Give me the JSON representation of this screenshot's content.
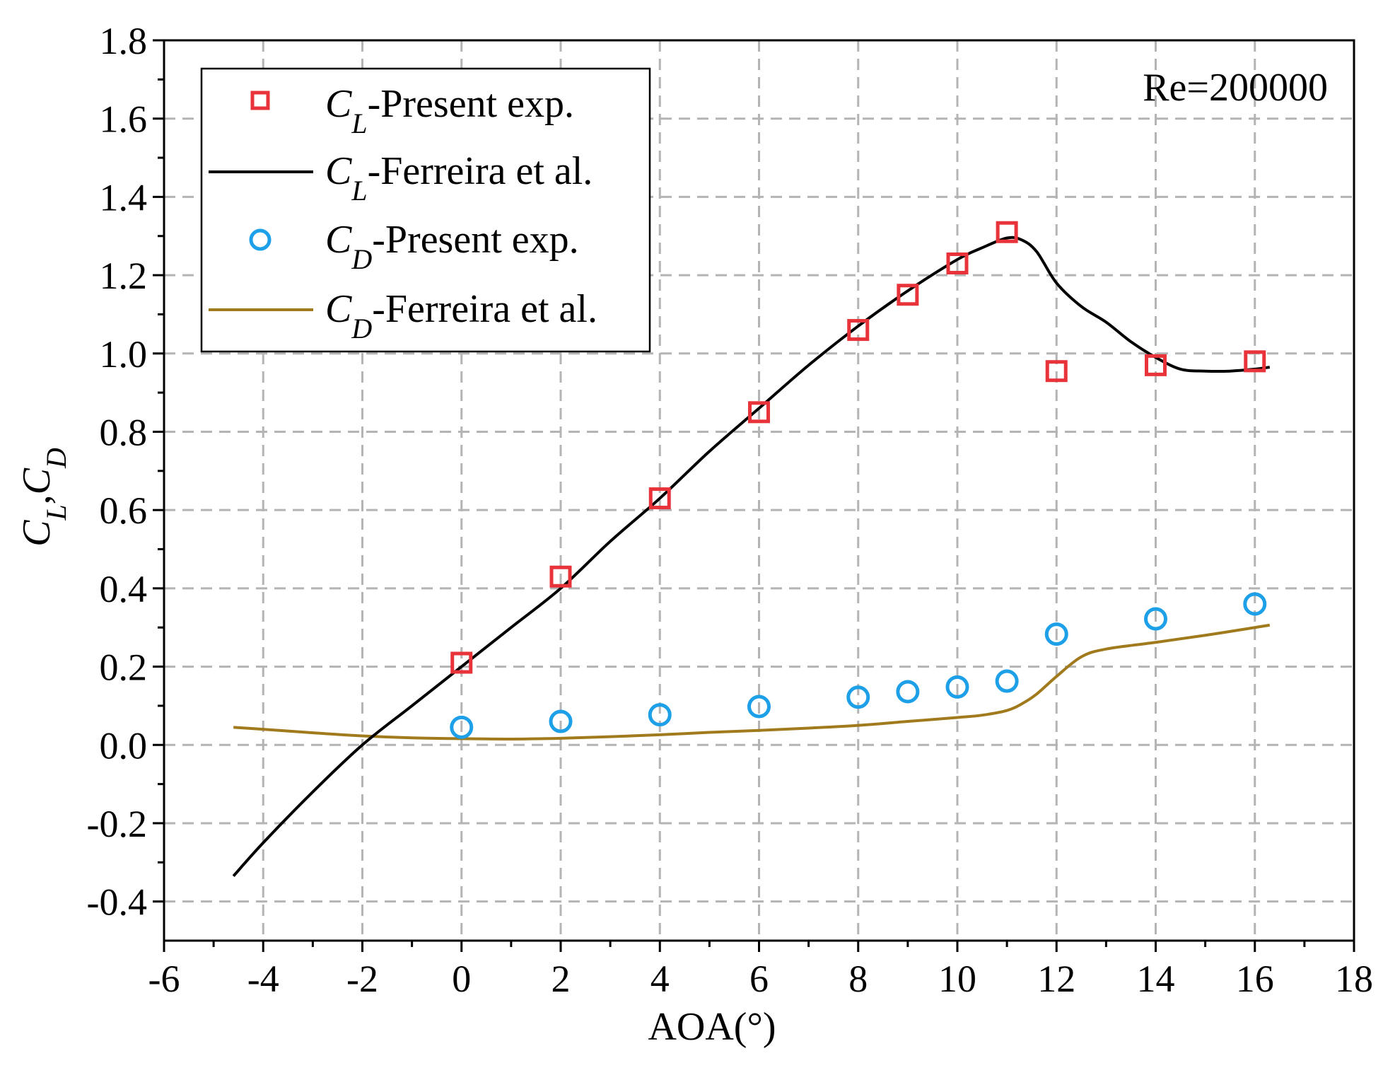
{
  "chart_data": {
    "type": "line",
    "annotation": "Re=200000",
    "xlabel": "AOA(°)",
    "ylabel": {
      "base1": "C",
      "sub1": "L",
      "sep": ",",
      "base2": "C",
      "sub2": "D"
    },
    "xlim": [
      -6,
      18
    ],
    "ylim": [
      -0.5,
      1.8
    ],
    "xticks": [
      -6,
      -4,
      -2,
      0,
      2,
      4,
      6,
      8,
      10,
      12,
      14,
      16,
      18
    ],
    "yticks": [
      -0.4,
      -0.2,
      0.0,
      0.2,
      0.4,
      0.6,
      0.8,
      1.0,
      1.2,
      1.4,
      1.6,
      1.8
    ],
    "grid": true,
    "legend_position": "top-left",
    "colors": {
      "cl_exp": "#e8333a",
      "cl_ref": "#000000",
      "cd_exp": "#1ea0e8",
      "cd_ref": "#a07a1c",
      "grid": "#b4b4b4"
    },
    "series": [
      {
        "name": "CL-Present exp.",
        "legend": {
          "base": "C",
          "sub": "L",
          "rest": "-Present exp."
        },
        "kind": "markers",
        "marker": "square",
        "x": [
          0,
          2,
          4,
          6,
          8,
          9,
          10,
          11,
          12,
          14,
          16
        ],
        "y": [
          0.21,
          0.43,
          0.63,
          0.85,
          1.06,
          1.15,
          1.23,
          1.31,
          0.955,
          0.97,
          0.98
        ]
      },
      {
        "name": "CL-Ferreira et al.",
        "legend": {
          "base": "C",
          "sub": "L",
          "rest": "-Ferreira et al."
        },
        "kind": "line",
        "x": [
          -4.6,
          -4,
          -3,
          -2,
          -1,
          0,
          1,
          2,
          3,
          4,
          5,
          6,
          7,
          8,
          9,
          10,
          10.5,
          11,
          11.3,
          11.6,
          12,
          12.5,
          13,
          13.5,
          14,
          14.5,
          15,
          15.5,
          16,
          16.3
        ],
        "y": [
          -0.335,
          -0.25,
          -0.12,
          0.0,
          0.1,
          0.2,
          0.3,
          0.4,
          0.52,
          0.63,
          0.75,
          0.86,
          0.97,
          1.07,
          1.16,
          1.24,
          1.27,
          1.295,
          1.29,
          1.26,
          1.18,
          1.12,
          1.08,
          1.03,
          0.99,
          0.96,
          0.955,
          0.955,
          0.96,
          0.965
        ]
      },
      {
        "name": "CD-Present exp.",
        "legend": {
          "base": "C",
          "sub": "D",
          "rest": "-Present exp."
        },
        "kind": "markers",
        "marker": "circle",
        "x": [
          0,
          2,
          4,
          6,
          8,
          9,
          10,
          11,
          12,
          14,
          16
        ],
        "y": [
          0.045,
          0.06,
          0.077,
          0.098,
          0.122,
          0.136,
          0.148,
          0.163,
          0.283,
          0.322,
          0.36
        ]
      },
      {
        "name": "CD-Ferreira et al.",
        "legend": {
          "base": "C",
          "sub": "D",
          "rest": "-Ferreira et al."
        },
        "kind": "line",
        "x": [
          -4.6,
          -4,
          -3,
          -2,
          -1,
          0,
          1,
          2,
          3,
          4,
          5,
          6,
          7,
          8,
          9,
          10,
          10.5,
          11,
          11.3,
          11.6,
          12,
          12.5,
          13,
          14,
          15,
          16,
          16.3
        ],
        "y": [
          0.045,
          0.04,
          0.031,
          0.023,
          0.018,
          0.016,
          0.015,
          0.017,
          0.021,
          0.026,
          0.032,
          0.037,
          0.043,
          0.05,
          0.06,
          0.07,
          0.076,
          0.088,
          0.105,
          0.13,
          0.175,
          0.225,
          0.245,
          0.262,
          0.28,
          0.3,
          0.306
        ]
      }
    ]
  }
}
